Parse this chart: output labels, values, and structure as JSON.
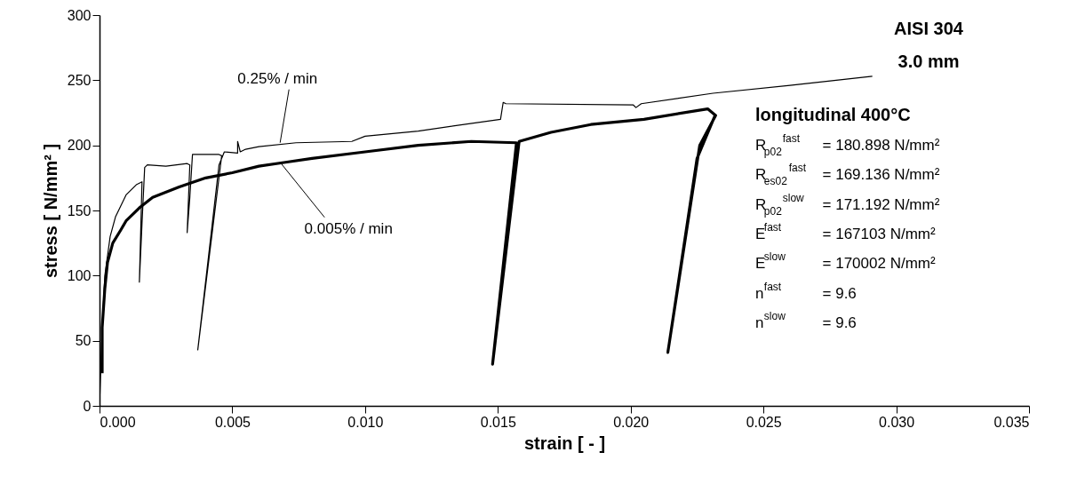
{
  "chart_data": {
    "type": "line",
    "xlabel": "strain [ - ]",
    "ylabel": "stress [ N/mm² ]",
    "xlim": [
      0,
      0.035
    ],
    "ylim": [
      0,
      300
    ],
    "xticks": [
      {
        "value": 0,
        "label": "0.000"
      },
      {
        "value": 0.005,
        "label": "0.005"
      },
      {
        "value": 0.01,
        "label": "0.010"
      },
      {
        "value": 0.015,
        "label": "0.015"
      },
      {
        "value": 0.02,
        "label": "0.020"
      },
      {
        "value": 0.025,
        "label": "0.025"
      },
      {
        "value": 0.03,
        "label": "0.030"
      },
      {
        "value": 0.035,
        "label": "0.035"
      }
    ],
    "yticks": [
      0,
      50,
      100,
      150,
      200,
      250,
      300
    ],
    "marker": "none",
    "line_style": "solid",
    "series": [
      {
        "color": "#000000",
        "x": [
          0,
          0.0001,
          0.0002,
          0.0004,
          0.0006,
          0.001,
          0.0014,
          0.0016,
          0.0015,
          0.0016,
          0.0017,
          0.0018,
          0.0025,
          0.0033,
          0.0034,
          0.0033,
          0.0034,
          0.0035,
          0.0045,
          0.0046,
          0.0037,
          0.0045,
          0.0047,
          0.0052,
          0.0052,
          0.0053,
          0.0055,
          0.006,
          0.0074,
          0.0095,
          0.01,
          0.012,
          0.0151,
          0.0152,
          0.0153,
          0.0201,
          0.0202,
          0.0204,
          0.0231,
          0.026,
          0.0291
        ],
        "values": [
          0,
          60,
          100,
          130,
          145,
          162,
          170,
          172,
          95,
          140,
          183,
          185,
          184,
          186,
          185,
          133,
          160,
          193,
          193,
          192,
          43,
          185,
          195,
          194,
          203,
          195,
          197,
          199,
          202,
          203,
          207,
          211,
          220,
          233,
          232,
          231,
          229,
          232,
          240,
          246,
          253
        ]
      },
      {
        "color": "#000000",
        "x": [
          0.0001,
          0.0001,
          0.0002,
          0.0003,
          0.0005,
          0.0008,
          0.001,
          0.0015,
          0.002,
          0.003,
          0.004,
          0.005,
          0.006,
          0.007,
          0.008,
          0.01,
          0.012,
          0.014,
          0.0157,
          0.0148,
          0.0158,
          0.017,
          0.0185,
          0.0205,
          0.0229,
          0.0232,
          0.0226,
          0.0214,
          0.0225,
          0.0232
        ],
        "values": [
          25,
          60,
          90,
          110,
          125,
          135,
          142,
          152,
          160,
          168,
          175,
          179,
          184,
          187,
          190,
          195,
          200,
          203,
          202,
          32,
          203,
          210,
          216,
          220,
          228,
          223,
          200,
          41,
          190,
          224
        ]
      }
    ],
    "annotations": [
      {
        "text": "0.25% / min",
        "x": 0.0068,
        "y": 202
      },
      {
        "text": "0.005% / min",
        "x": 0.0068,
        "y": 187
      },
      "AISI 304",
      "3.0 mm",
      "longitudinal 400°C",
      "R$_{p02}$$^{fast}$ = 180.898 N/mm²",
      "R$_{es02}$$^{fast}$ = 169.136 N/mm²",
      "R$_{p02}$$^{slow}$ = 171.192 N/mm²",
      "E$^{fast}$ = 167103 N/mm²",
      "E$^{slow}$ = 170002 N/mm²",
      "n$^{fast}$ = 9.6",
      "n$^{slow}$ = 9.6"
    ]
  }
}
